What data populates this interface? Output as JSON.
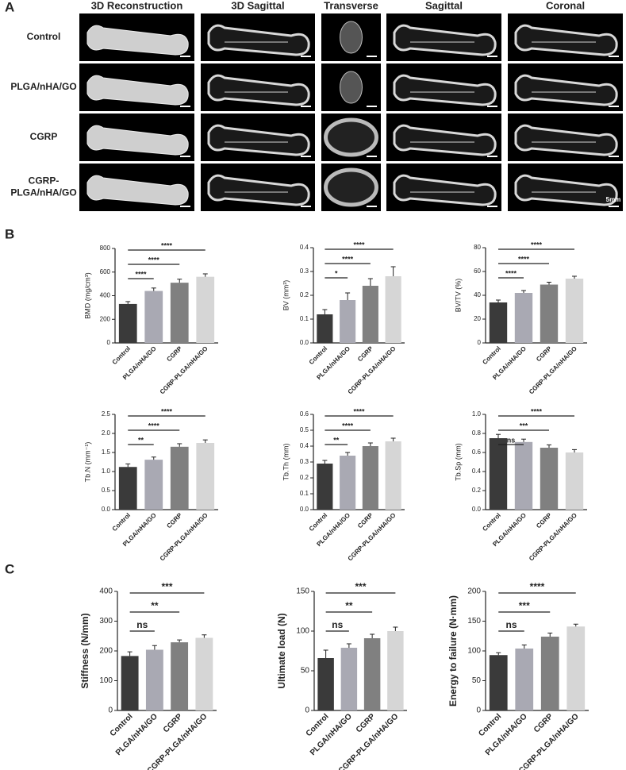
{
  "panel_a": {
    "label": "A",
    "columns": [
      "3D Reconstruction",
      "3D Sagittal",
      "Transverse",
      "Sagittal",
      "Coronal"
    ],
    "rows": [
      [
        "Control"
      ],
      [
        "PLGA/nHA/GO"
      ],
      [
        "CGRP"
      ],
      [
        "CGRP-",
        "PLGA/nHA/GO"
      ]
    ],
    "scale_bar": "5mm"
  },
  "panel_b": {
    "label": "B"
  },
  "panel_c": {
    "label": "C"
  },
  "chart_data": [
    {
      "type": "bar",
      "ylabel": "BMD (mg/cm³)",
      "categories": [
        "Control",
        "PLGA/nHA/GO",
        "CGRP",
        "CGRP-PLGA/nHA/GO"
      ],
      "values": [
        330,
        440,
        510,
        560
      ],
      "errors": [
        20,
        25,
        30,
        25
      ],
      "colors": [
        "#3a3a3a",
        "#a9a9b3",
        "#808080",
        "#d6d6d6"
      ],
      "ylim": [
        0,
        800
      ],
      "yticks": [
        0,
        200,
        400,
        600,
        800
      ],
      "annotations": [
        "****",
        "****",
        "****"
      ]
    },
    {
      "type": "bar",
      "ylabel": "BV (mm³)",
      "categories": [
        "Control",
        "PLGA/nHA/GO",
        "CGRP",
        "CGRP-PLGA/nHA/GO"
      ],
      "values": [
        0.12,
        0.18,
        0.24,
        0.28
      ],
      "errors": [
        0.02,
        0.03,
        0.03,
        0.04
      ],
      "colors": [
        "#3a3a3a",
        "#a9a9b3",
        "#808080",
        "#d6d6d6"
      ],
      "ylim": [
        0,
        0.4
      ],
      "yticks": [
        {
          "value": 0,
          "label": "0.0"
        },
        0.1,
        0.2,
        0.3,
        0.4
      ],
      "annotations": [
        "*",
        "****",
        "****"
      ]
    },
    {
      "type": "bar",
      "ylabel": "BV/TV (%)",
      "categories": [
        "Control",
        "PLGA/nHA/GO",
        "CGRP",
        "CGRP-PLGA/nHA/GO"
      ],
      "values": [
        34,
        42,
        49,
        54
      ],
      "errors": [
        2,
        2,
        2,
        2
      ],
      "colors": [
        "#3a3a3a",
        "#a9a9b3",
        "#808080",
        "#d6d6d6"
      ],
      "ylim": [
        0,
        80
      ],
      "yticks": [
        0,
        20,
        40,
        60,
        80
      ],
      "annotations": [
        "****",
        "****",
        "****"
      ]
    },
    {
      "type": "bar",
      "ylabel": "Tb.N (mm⁻¹)",
      "categories": [
        "Control",
        "PLGA/nHA/GO",
        "CGRP",
        "CGRP-PLGA/nHA/GO"
      ],
      "values": [
        1.12,
        1.31,
        1.65,
        1.75
      ],
      "errors": [
        0.08,
        0.07,
        0.08,
        0.08
      ],
      "colors": [
        "#3a3a3a",
        "#a9a9b3",
        "#808080",
        "#d6d6d6"
      ],
      "ylim": [
        0,
        2.5
      ],
      "yticks": [
        {
          "value": 0,
          "label": "0.0"
        },
        0.5,
        {
          "value": 1,
          "label": "1.0"
        },
        1.5,
        {
          "value": 2,
          "label": "2.0"
        },
        2.5
      ],
      "annotations": [
        "**",
        "****",
        "****"
      ]
    },
    {
      "type": "bar",
      "ylabel": "Tb.Th (mm)",
      "categories": [
        "Control",
        "PLGA/nHA/GO",
        "CGRP",
        "CGRP-PLGA/nHA/GO"
      ],
      "values": [
        0.29,
        0.34,
        0.4,
        0.43
      ],
      "errors": [
        0.02,
        0.02,
        0.02,
        0.02
      ],
      "colors": [
        "#3a3a3a",
        "#a9a9b3",
        "#808080",
        "#d6d6d6"
      ],
      "ylim": [
        0,
        0.6
      ],
      "yticks": [
        {
          "value": 0,
          "label": "0.0"
        },
        0.1,
        0.2,
        0.3,
        0.4,
        0.5,
        0.6
      ],
      "annotations": [
        "**",
        "****",
        "****"
      ]
    },
    {
      "type": "bar",
      "ylabel": "Tb.Sp (mm)",
      "categories": [
        "Control",
        "PLGA/nHA/GO",
        "CGRP",
        "CGRP-PLGA/nHA/GO"
      ],
      "values": [
        0.75,
        0.71,
        0.65,
        0.6
      ],
      "errors": [
        0.04,
        0.03,
        0.03,
        0.03
      ],
      "colors": [
        "#3a3a3a",
        "#a9a9b3",
        "#808080",
        "#d6d6d6"
      ],
      "ylim": [
        0,
        1
      ],
      "yticks": [
        {
          "value": 0,
          "label": "0.0"
        },
        0.2,
        0.4,
        0.6,
        0.8,
        {
          "value": 1,
          "label": "1.0"
        }
      ],
      "annotations": [
        "ns",
        "***",
        "****"
      ]
    },
    {
      "type": "bar",
      "ylabel": "Stiffness (N/mm)",
      "categories": [
        "Control",
        "PLGA/nHA/GO",
        "CGRP",
        "CGRP-PLGA/nHA/GO"
      ],
      "values": [
        183,
        204,
        229,
        244
      ],
      "errors": [
        14,
        14,
        8,
        10
      ],
      "colors": [
        "#3a3a3a",
        "#a9a9b3",
        "#808080",
        "#d6d6d6"
      ],
      "ylim": [
        0,
        400
      ],
      "yticks": [
        0,
        100,
        200,
        300,
        400
      ],
      "annotations": [
        "ns",
        "**",
        "***"
      ]
    },
    {
      "type": "bar",
      "ylabel": "Ultimate load (N)",
      "categories": [
        "Control",
        "PLGA/nHA/GO",
        "CGRP",
        "CGRP-PLGA/nHA/GO"
      ],
      "values": [
        66,
        79,
        91,
        100
      ],
      "errors": [
        10,
        5,
        5,
        5
      ],
      "colors": [
        "#3a3a3a",
        "#a9a9b3",
        "#808080",
        "#d6d6d6"
      ],
      "ylim": [
        0,
        150
      ],
      "yticks": [
        0,
        50,
        100,
        150
      ],
      "annotations": [
        "ns",
        "**",
        "***"
      ]
    },
    {
      "type": "bar",
      "ylabel": "Energy to failure (N·mm)",
      "categories": [
        "Control",
        "PLGA/nHA/GO",
        "CGRP",
        "CGRP-PLGA/nHA/GO"
      ],
      "values": [
        93,
        104,
        124,
        141
      ],
      "errors": [
        4,
        6,
        6,
        4
      ],
      "colors": [
        "#3a3a3a",
        "#a9a9b3",
        "#808080",
        "#d6d6d6"
      ],
      "ylim": [
        0,
        200
      ],
      "yticks": [
        0,
        50,
        100,
        150,
        200
      ],
      "annotations": [
        "ns",
        "***",
        "****"
      ]
    }
  ]
}
